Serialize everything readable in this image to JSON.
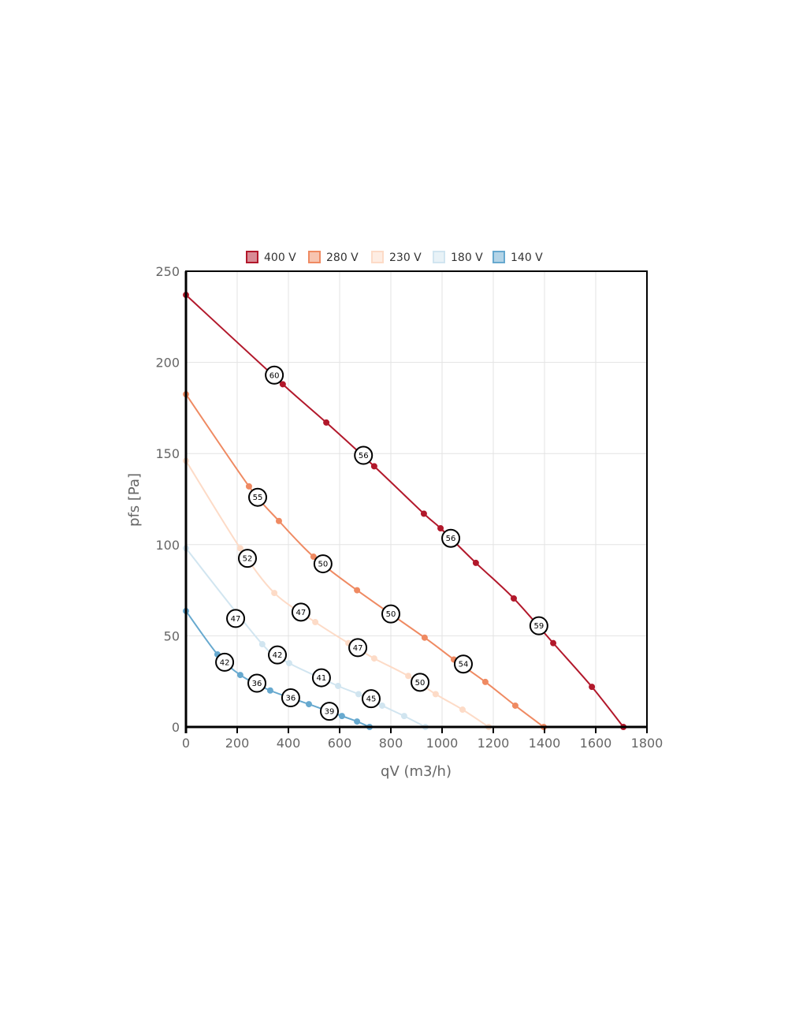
{
  "chart_data": {
    "type": "line",
    "title": "",
    "xlabel": "qV (m3/h)",
    "ylabel": "pfs [Pa]",
    "xlim": [
      0,
      1800
    ],
    "ylim": [
      0,
      250
    ],
    "xticks": [
      0,
      200,
      400,
      600,
      800,
      1000,
      1200,
      1400,
      1600,
      1800
    ],
    "yticks": [
      0,
      50,
      100,
      150,
      200,
      250
    ],
    "grid": true,
    "legend": "top",
    "series": [
      {
        "name": "400 V",
        "color": "#b2182b",
        "points": [
          [
            0,
            237
          ],
          [
            378,
            188
          ],
          [
            548,
            167
          ],
          [
            735,
            143
          ],
          [
            929,
            117
          ],
          [
            994,
            109
          ],
          [
            1132,
            90
          ],
          [
            1280,
            70.5
          ],
          [
            1434,
            46
          ],
          [
            1585,
            22
          ],
          [
            1708,
            0
          ]
        ],
        "labels": [
          {
            "x": 345,
            "y": 193,
            "text": "60"
          },
          {
            "x": 693,
            "y": 149,
            "text": "56"
          },
          {
            "x": 1034,
            "y": 103.5,
            "text": "56"
          },
          {
            "x": 1378,
            "y": 55.5,
            "text": "59"
          }
        ]
      },
      {
        "name": "280 V",
        "color": "#ef8a62",
        "points": [
          [
            0,
            182.5
          ],
          [
            246,
            132
          ],
          [
            363,
            113
          ],
          [
            498,
            93.4
          ],
          [
            668,
            75
          ],
          [
            932,
            49
          ],
          [
            1046,
            37
          ],
          [
            1169,
            24.7
          ],
          [
            1286,
            11.7
          ],
          [
            1397,
            0
          ]
        ],
        "labels": [
          {
            "x": 280,
            "y": 126,
            "text": "55"
          },
          {
            "x": 535,
            "y": 89.5,
            "text": "50"
          },
          {
            "x": 800,
            "y": 62,
            "text": "50"
          },
          {
            "x": 1083,
            "y": 34.5,
            "text": "54"
          }
        ]
      },
      {
        "name": "230 V",
        "color": "#fddbc7",
        "points": [
          [
            0,
            146
          ],
          [
            212,
            98
          ],
          [
            345,
            73.5
          ],
          [
            505,
            57.5
          ],
          [
            634,
            46
          ],
          [
            735,
            37.6
          ],
          [
            868,
            28
          ],
          [
            975,
            18
          ],
          [
            1080,
            9.5
          ],
          [
            1182,
            0
          ]
        ],
        "labels": [
          {
            "x": 240,
            "y": 92.5,
            "text": "52"
          },
          {
            "x": 449,
            "y": 63,
            "text": "47"
          },
          {
            "x": 671,
            "y": 43.5,
            "text": "47"
          },
          {
            "x": 914,
            "y": 24.5,
            "text": "50"
          }
        ]
      },
      {
        "name": "180 V",
        "color": "#d1e5f0",
        "points": [
          [
            0,
            98
          ],
          [
            298,
            45.4
          ],
          [
            403,
            35
          ],
          [
            594,
            22.5
          ],
          [
            674,
            18
          ],
          [
            766,
            11.7
          ],
          [
            852,
            6
          ],
          [
            935,
            0
          ]
        ],
        "labels": [
          {
            "x": 194,
            "y": 59.5,
            "text": "47"
          },
          {
            "x": 357,
            "y": 39.5,
            "text": "42"
          },
          {
            "x": 529,
            "y": 27,
            "text": "41"
          },
          {
            "x": 723,
            "y": 15.5,
            "text": "45"
          }
        ]
      },
      {
        "name": "140 V",
        "color": "#67a9cf",
        "points": [
          [
            0,
            63.6
          ],
          [
            123,
            39.8
          ],
          [
            212,
            28.5
          ],
          [
            329,
            20
          ],
          [
            480,
            12.5
          ],
          [
            609,
            6
          ],
          [
            668,
            3
          ],
          [
            717,
            0
          ]
        ],
        "labels": [
          {
            "x": 151,
            "y": 35.5,
            "text": "42"
          },
          {
            "x": 277,
            "y": 24,
            "text": "36"
          },
          {
            "x": 409,
            "y": 16,
            "text": "36"
          },
          {
            "x": 560,
            "y": 8.6,
            "text": "39"
          }
        ]
      }
    ]
  }
}
